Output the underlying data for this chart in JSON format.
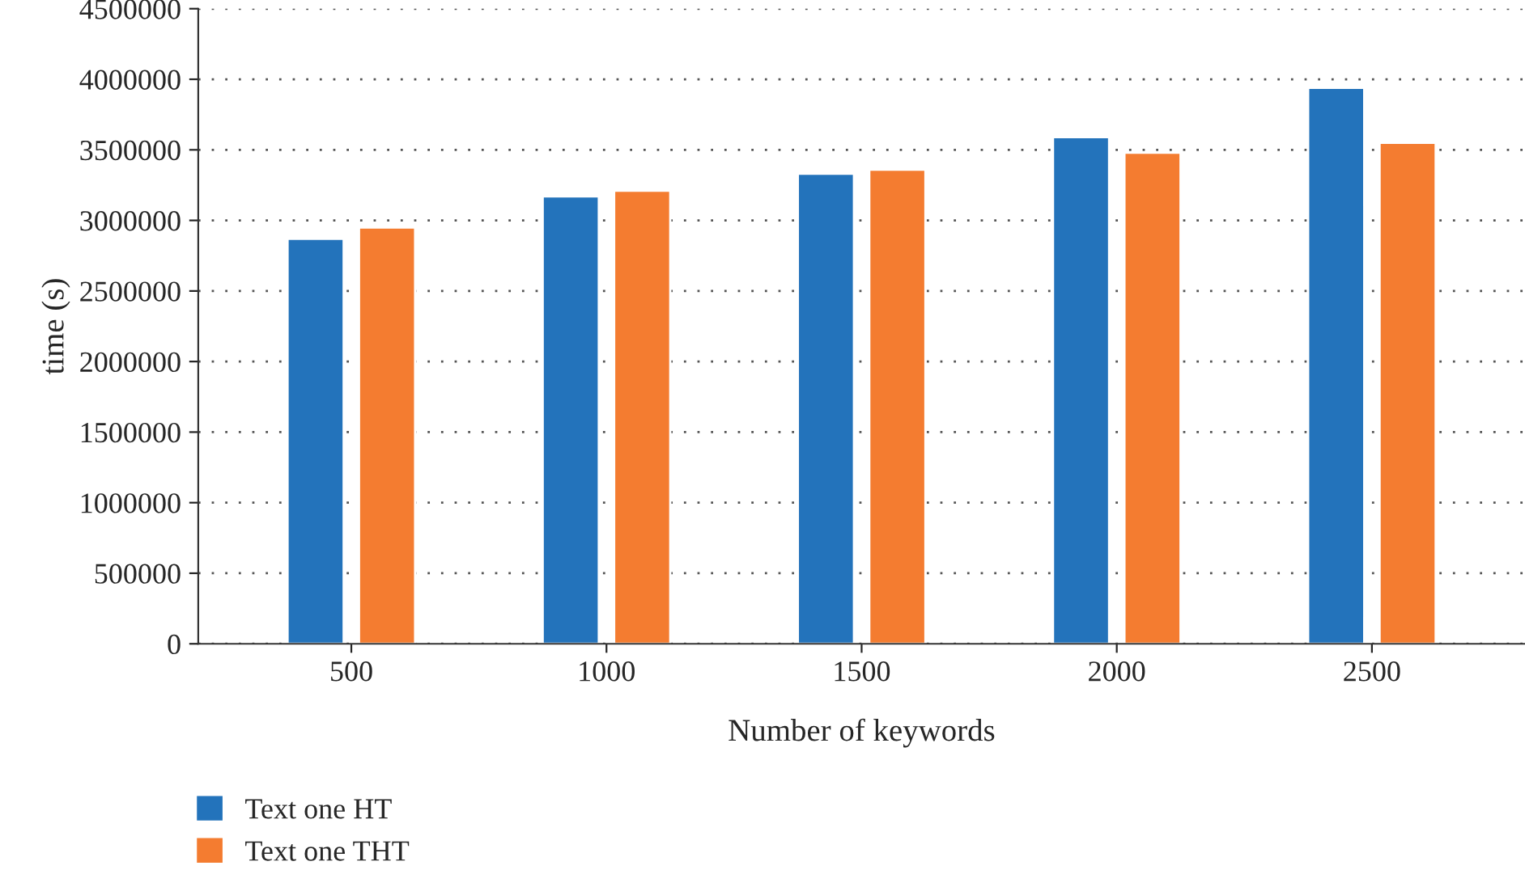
{
  "chart_data": {
    "type": "bar",
    "xlabel": "Number of keywords",
    "ylabel": "time (s)",
    "categories": [
      "500",
      "1000",
      "1500",
      "2000",
      "2500"
    ],
    "series": [
      {
        "name": "Text one HT",
        "color": "#2373bb",
        "values": [
          2870000,
          3170000,
          3330000,
          3590000,
          3940000
        ]
      },
      {
        "name": "Text one THT",
        "color": "#f47c30",
        "values": [
          2950000,
          3210000,
          3360000,
          3480000,
          3550000
        ]
      }
    ],
    "ylim": [
      0,
      4500000
    ],
    "yticks": [
      0,
      500000,
      1000000,
      1500000,
      2000000,
      2500000,
      3000000,
      3500000,
      4000000,
      4500000
    ],
    "grid": "y",
    "legend": "bottom left",
    "line_style": "dotted"
  }
}
